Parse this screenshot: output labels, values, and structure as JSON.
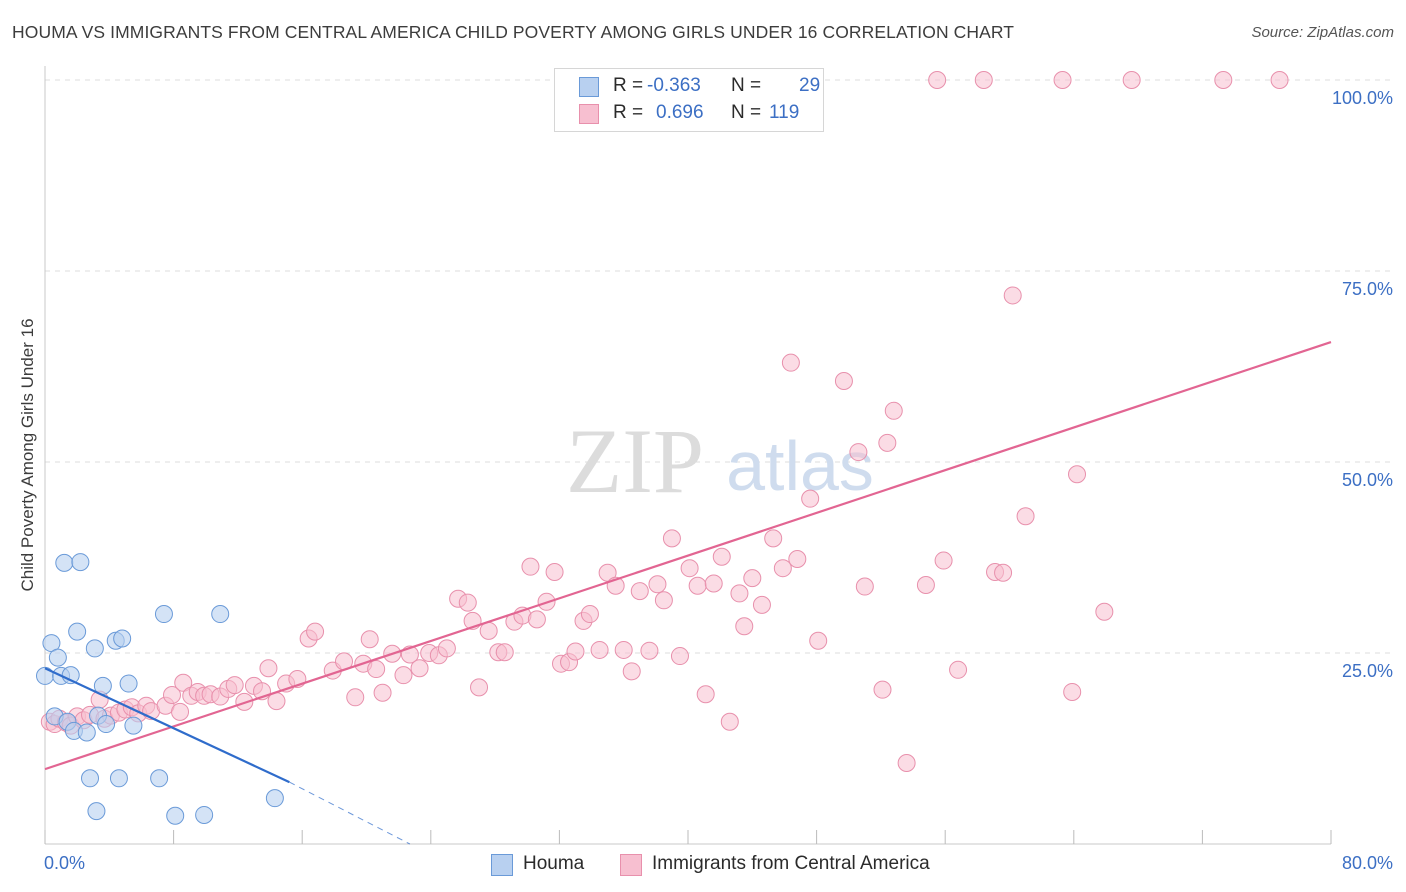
{
  "title": "HOUMA VS IMMIGRANTS FROM CENTRAL AMERICA CHILD POVERTY AMONG GIRLS UNDER 16 CORRELATION CHART",
  "source": "Source: ZipAtlas.com",
  "watermark": {
    "zip": "ZIP",
    "atlas": "atlas"
  },
  "colors": {
    "houma_fill": "#b8d0f0",
    "houma_stroke": "#6a9ad8",
    "houma_line": "#2f6ccb",
    "ca_fill": "#f7bfd0",
    "ca_stroke": "#e890ac",
    "ca_line": "#e26592",
    "tick_label": "#3c6fc4",
    "grid": "#dedede"
  },
  "legend": {
    "r_label": "R =",
    "n_label": "N =",
    "houma": {
      "r": "-0.363",
      "n": "29"
    },
    "central_america": {
      "r": "0.696",
      "n": "119"
    }
  },
  "chart_data": {
    "type": "scatter",
    "title": "HOUMA VS IMMIGRANTS FROM CENTRAL AMERICA CHILD POVERTY AMONG GIRLS UNDER 16 CORRELATION CHART",
    "xlabel": "",
    "ylabel": "Child Poverty Among Girls Under 16",
    "xlim": [
      0,
      80
    ],
    "ylim": [
      0,
      100
    ],
    "x_tick_labels": [
      "0.0%",
      "80.0%"
    ],
    "y_tick_labels": [
      "25.0%",
      "50.0%",
      "75.0%",
      "100.0%"
    ],
    "y_ticks": [
      25,
      50,
      75,
      100
    ],
    "grid": true,
    "legend_placement": "top-center",
    "series": [
      {
        "name": "Houma",
        "points": [
          [
            0.0,
            22.0
          ],
          [
            0.4,
            26.3
          ],
          [
            0.6,
            16.7
          ],
          [
            0.8,
            24.4
          ],
          [
            1.0,
            22.0
          ],
          [
            1.2,
            36.8
          ],
          [
            1.4,
            16.0
          ],
          [
            1.6,
            22.1
          ],
          [
            1.8,
            14.8
          ],
          [
            2.0,
            27.8
          ],
          [
            2.6,
            14.6
          ],
          [
            2.8,
            8.6
          ],
          [
            3.1,
            25.6
          ],
          [
            3.2,
            4.3
          ],
          [
            3.3,
            16.8
          ],
          [
            3.6,
            20.7
          ],
          [
            3.8,
            15.7
          ],
          [
            4.4,
            26.6
          ],
          [
            4.6,
            8.6
          ],
          [
            4.8,
            26.9
          ],
          [
            5.2,
            21.0
          ],
          [
            5.5,
            15.5
          ],
          [
            7.1,
            8.6
          ],
          [
            7.4,
            30.1
          ],
          [
            8.1,
            3.7
          ],
          [
            9.9,
            3.8
          ],
          [
            10.9,
            30.1
          ],
          [
            14.3,
            6.0
          ],
          [
            2.2,
            36.9
          ]
        ],
        "trend": [
          [
            0.0,
            23.0
          ],
          [
            15.2,
            8.1
          ]
        ],
        "trend_extension": [
          [
            15.2,
            8.1
          ],
          [
            22.7,
            0.0
          ]
        ]
      },
      {
        "name": "Immigrants from Central America",
        "points": [
          [
            0.3,
            16.0
          ],
          [
            0.6,
            15.7
          ],
          [
            0.9,
            16.4
          ],
          [
            1.3,
            15.9
          ],
          [
            1.6,
            15.5
          ],
          [
            2.0,
            16.7
          ],
          [
            2.4,
            16.2
          ],
          [
            2.8,
            16.9
          ],
          [
            3.4,
            18.9
          ],
          [
            3.7,
            16.4
          ],
          [
            4.1,
            16.8
          ],
          [
            4.6,
            17.2
          ],
          [
            5.0,
            17.6
          ],
          [
            5.4,
            17.9
          ],
          [
            5.8,
            17.1
          ],
          [
            6.3,
            18.1
          ],
          [
            6.6,
            17.4
          ],
          [
            7.5,
            18.1
          ],
          [
            7.9,
            19.5
          ],
          [
            8.4,
            17.3
          ],
          [
            8.6,
            21.1
          ],
          [
            9.1,
            19.4
          ],
          [
            9.5,
            19.9
          ],
          [
            9.9,
            19.4
          ],
          [
            10.3,
            19.6
          ],
          [
            10.9,
            19.3
          ],
          [
            11.4,
            20.3
          ],
          [
            11.8,
            20.8
          ],
          [
            12.4,
            18.6
          ],
          [
            13.0,
            20.7
          ],
          [
            13.5,
            20.0
          ],
          [
            13.9,
            23.0
          ],
          [
            14.4,
            18.7
          ],
          [
            15.0,
            21.0
          ],
          [
            15.7,
            21.6
          ],
          [
            16.4,
            26.9
          ],
          [
            16.8,
            27.8
          ],
          [
            17.9,
            22.7
          ],
          [
            18.6,
            23.9
          ],
          [
            19.3,
            19.2
          ],
          [
            19.8,
            23.6
          ],
          [
            20.2,
            26.8
          ],
          [
            20.6,
            22.9
          ],
          [
            21.0,
            19.8
          ],
          [
            21.6,
            24.9
          ],
          [
            22.3,
            22.1
          ],
          [
            22.7,
            24.8
          ],
          [
            23.3,
            23.0
          ],
          [
            23.9,
            25.0
          ],
          [
            24.5,
            24.7
          ],
          [
            25.0,
            25.6
          ],
          [
            25.7,
            32.1
          ],
          [
            26.3,
            31.6
          ],
          [
            26.6,
            29.2
          ],
          [
            27.0,
            20.5
          ],
          [
            27.6,
            27.9
          ],
          [
            28.2,
            25.1
          ],
          [
            28.6,
            25.1
          ],
          [
            29.2,
            29.1
          ],
          [
            29.7,
            29.9
          ],
          [
            30.2,
            36.3
          ],
          [
            30.6,
            29.4
          ],
          [
            31.2,
            31.7
          ],
          [
            31.7,
            35.6
          ],
          [
            32.1,
            23.6
          ],
          [
            32.6,
            23.8
          ],
          [
            33.0,
            25.2
          ],
          [
            33.5,
            29.2
          ],
          [
            33.9,
            30.1
          ],
          [
            34.5,
            25.4
          ],
          [
            35.0,
            35.5
          ],
          [
            35.5,
            33.8
          ],
          [
            36.0,
            25.4
          ],
          [
            36.5,
            22.6
          ],
          [
            37.0,
            33.1
          ],
          [
            37.6,
            25.3
          ],
          [
            38.1,
            34.0
          ],
          [
            38.5,
            31.9
          ],
          [
            39.0,
            40.0
          ],
          [
            39.5,
            24.6
          ],
          [
            40.1,
            36.1
          ],
          [
            40.6,
            33.8
          ],
          [
            41.1,
            19.6
          ],
          [
            41.6,
            34.1
          ],
          [
            42.1,
            37.6
          ],
          [
            42.6,
            16.0
          ],
          [
            43.2,
            32.8
          ],
          [
            43.5,
            28.5
          ],
          [
            44.0,
            34.8
          ],
          [
            44.6,
            31.3
          ],
          [
            45.3,
            40.0
          ],
          [
            45.9,
            36.1
          ],
          [
            46.4,
            63.0
          ],
          [
            46.8,
            37.3
          ],
          [
            47.6,
            45.2
          ],
          [
            48.1,
            26.6
          ],
          [
            49.7,
            60.6
          ],
          [
            50.6,
            51.3
          ],
          [
            51.0,
            33.7
          ],
          [
            52.1,
            20.2
          ],
          [
            52.4,
            52.5
          ],
          [
            52.8,
            56.7
          ],
          [
            53.6,
            10.6
          ],
          [
            54.8,
            33.9
          ],
          [
            55.5,
            100.0
          ],
          [
            55.9,
            37.1
          ],
          [
            56.8,
            22.8
          ],
          [
            58.4,
            100.0
          ],
          [
            59.1,
            35.6
          ],
          [
            59.6,
            35.5
          ],
          [
            60.2,
            71.8
          ],
          [
            61.0,
            42.9
          ],
          [
            63.3,
            100.0
          ],
          [
            63.9,
            19.9
          ],
          [
            64.2,
            48.4
          ],
          [
            65.9,
            30.4
          ],
          [
            67.6,
            100.0
          ],
          [
            73.3,
            100.0
          ],
          [
            76.8,
            100.0
          ]
        ],
        "trend": [
          [
            0.0,
            9.8
          ],
          [
            80.0,
            65.7
          ]
        ]
      }
    ]
  },
  "bottom_legend": {
    "houma": "Houma",
    "central_america": "Immigrants from Central America"
  }
}
